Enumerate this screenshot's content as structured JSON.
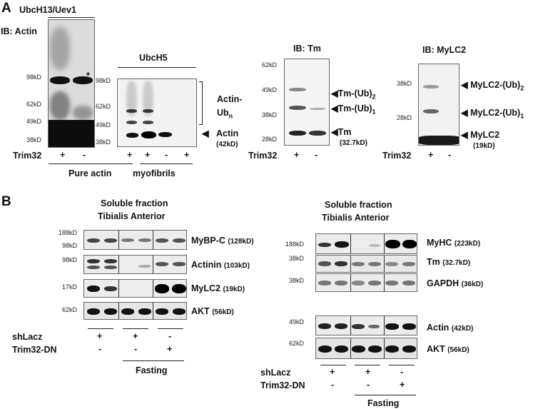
{
  "panelA": {
    "label": "A",
    "ubc13": {
      "title": "UbcH13/Uev1",
      "ib": "IB: Actin",
      "markers": [
        "98kD",
        "62kD",
        "49kD",
        "38kD"
      ],
      "asterisk": "*"
    },
    "ubch5": {
      "title": "UbcH5",
      "markers": [
        "98kD",
        "62kD",
        "49kD",
        "38kD"
      ],
      "actin_ub": "Actin-",
      "ub": "Ub",
      "ub_sub": "n",
      "actin": "Actin",
      "actin_kd": "(42kD)"
    },
    "trim32_row1": {
      "label": "Trim32",
      "signs": [
        "+",
        "-",
        "+",
        "+",
        "-",
        "+"
      ]
    },
    "pure_actin": "Pure actin",
    "myofibrils": "myofibrils",
    "tm": {
      "title": "IB: Tm",
      "markers": [
        "62kD",
        "49kD",
        "38kD",
        "28kD"
      ],
      "tm_ub2": "Tm-(Ub)",
      "tm_ub2_sub": "2",
      "tm_ub1": "Tm-(Ub)",
      "tm_ub1_sub": "1",
      "tm": "Tm",
      "tm_kd": "(32.7kD)",
      "trim_label": "Trim32",
      "signs": [
        "+",
        "-"
      ]
    },
    "mylc2": {
      "title": "IB: MyLC2",
      "markers": [
        "38kD",
        "28kD"
      ],
      "ub2": "MyLC2-(Ub)",
      "ub2_sub": "2",
      "ub1": "MyLC2-(Ub)",
      "ub1_sub": "1",
      "name": "MyLC2",
      "kd": "(19kD)",
      "trim_label": "Trim32",
      "signs": [
        "+",
        "-"
      ]
    }
  },
  "panelB": {
    "label": "B",
    "left": {
      "title1": "Soluble fraction",
      "title2": "Tibialis Anterior",
      "rows": [
        {
          "marker": "188kD",
          "marker2": "98kD",
          "name": "MyBP-C",
          "kd": "(128kD)"
        },
        {
          "marker": "98kD",
          "name": "Actinin",
          "kd": "(103kD)"
        },
        {
          "marker": "17kD",
          "name": "MyLC2",
          "kd": "(19kD)"
        },
        {
          "marker": "62kD",
          "name": "AKT",
          "kd": "(56kD)"
        }
      ],
      "shlacz": "shLacz",
      "trimdn": "Trim32-DN",
      "shlacz_signs": [
        "+",
        "+",
        "-"
      ],
      "trimdn_signs": [
        "-",
        "-",
        "+"
      ],
      "fasting": "Fasting"
    },
    "right": {
      "title1": "Soluble fraction",
      "title2": "Tibialis Anterior",
      "rows": [
        {
          "marker": "188kD",
          "name": "MyHC",
          "kd": "(223kD)"
        },
        {
          "marker": "38kD",
          "name": "Tm",
          "kd": "(32.7kD)"
        },
        {
          "marker": "38kD",
          "name": "GAPDH",
          "kd": "(36kD)"
        },
        {
          "marker": "49kD",
          "name": "Actin",
          "kd": "(42kD)"
        },
        {
          "marker": "62kD",
          "name": "AKT",
          "kd": "(56kD)"
        }
      ],
      "shlacz": "shLacz",
      "trimdn": "Trim32-DN",
      "shlacz_signs": [
        "+",
        "+",
        "-"
      ],
      "trimdn_signs": [
        "-",
        "-",
        "+"
      ],
      "fasting": "Fasting"
    }
  }
}
